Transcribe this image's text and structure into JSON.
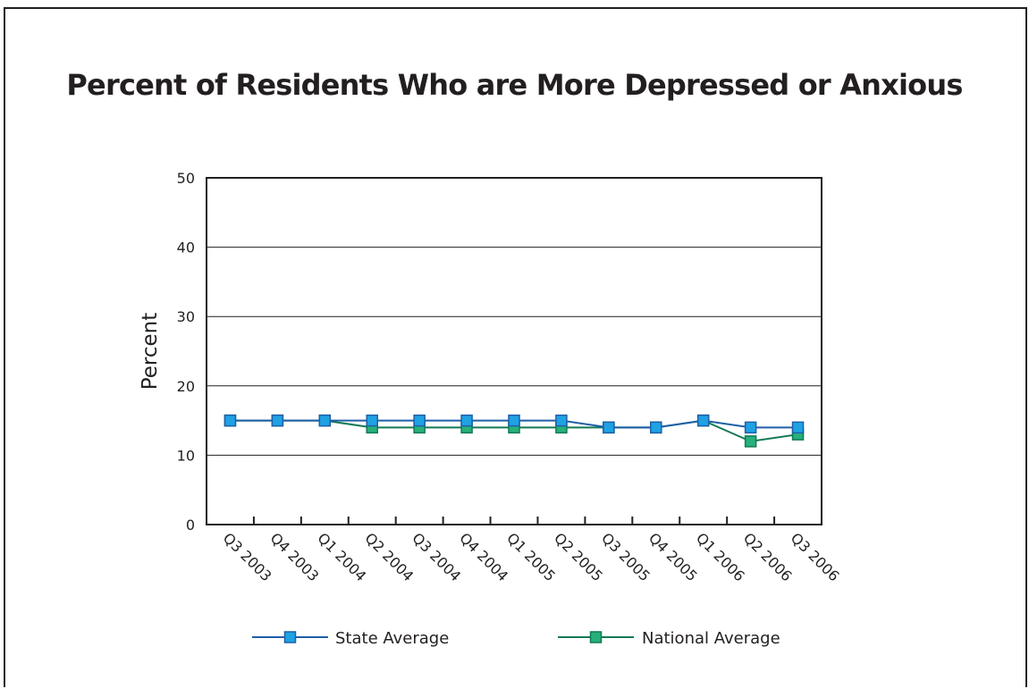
{
  "chart_data": {
    "type": "line",
    "title": "Percent of Residents Who are More Depressed or Anxious",
    "ylabel": "Percent",
    "xlabel": "",
    "ylim": [
      0,
      50
    ],
    "yticks": [
      0,
      10,
      20,
      30,
      40,
      50
    ],
    "grid": true,
    "legend": "bottom",
    "categories": [
      "Q3 2003",
      "Q4 2003",
      "Q1 2004",
      "Q2 2004",
      "Q3 2004",
      "Q4 2004",
      "Q1 2005",
      "Q2 2005",
      "Q3 2005",
      "Q4 2005",
      "Q1 2006",
      "Q2 2006",
      "Q3 2006"
    ],
    "series": [
      {
        "name": "State Average",
        "color": "#1e5fa8",
        "marker_fill": "#1fa2e4",
        "values": [
          15,
          15,
          15,
          15,
          15,
          15,
          15,
          15,
          14,
          14,
          15,
          14,
          14
        ]
      },
      {
        "name": "National Average",
        "color": "#117a55",
        "marker_fill": "#27b07a",
        "values": [
          15,
          15,
          15,
          14,
          14,
          14,
          14,
          14,
          14,
          14,
          15,
          12,
          13
        ]
      }
    ]
  }
}
